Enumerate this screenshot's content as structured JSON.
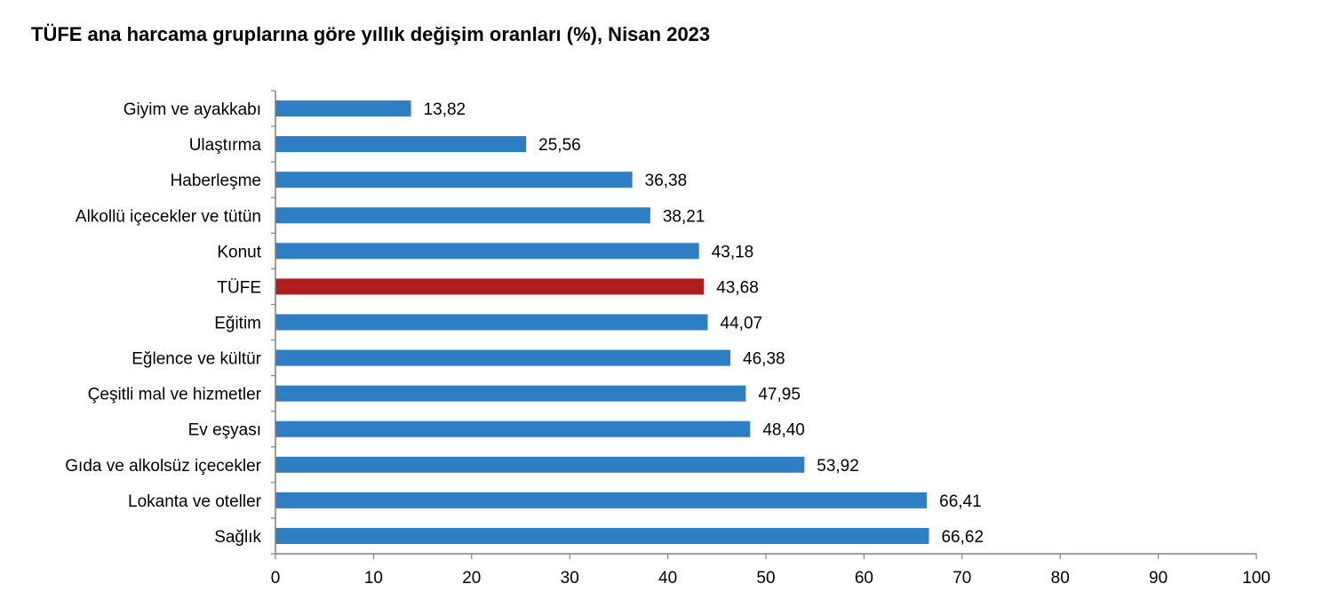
{
  "title": "TÜFE ana harcama gruplarına göre yıllık değişim oranları (%), Nisan 2023",
  "colors": {
    "bar": "#2E7EC4",
    "highlight": "#AE1C1C",
    "axis": "#808080"
  },
  "chart_data": {
    "type": "bar",
    "orientation": "horizontal",
    "title": "TÜFE ana harcama gruplarına göre yıllık değişim oranları (%), Nisan 2023",
    "xlabel": "",
    "ylabel": "",
    "categories": [
      "Giyim ve ayakkabı",
      "Ulaştırma",
      "Haberleşme",
      "Alkollü içecekler ve tütün",
      "Konut",
      "TÜFE",
      "Eğitim",
      "Eğlence ve kültür",
      "Çeşitli mal ve hizmetler",
      "Ev eşyası",
      "Gıda ve alkolsüz içecekler",
      "Lokanta ve oteller",
      "Sağlık"
    ],
    "values": [
      13.82,
      25.56,
      36.38,
      38.21,
      43.18,
      43.68,
      44.07,
      46.38,
      47.95,
      48.4,
      53.92,
      66.41,
      66.62
    ],
    "value_labels": [
      "13,82",
      "25,56",
      "36,38",
      "38,21",
      "43,18",
      "43,68",
      "44,07",
      "46,38",
      "47,95",
      "48,40",
      "53,92",
      "66,41",
      "66,62"
    ],
    "highlight_category": "TÜFE",
    "xlim": [
      0,
      100
    ],
    "xticks": [
      0,
      10,
      20,
      30,
      40,
      50,
      60,
      70,
      80,
      90,
      100
    ],
    "grid": false,
    "legend": "none"
  }
}
